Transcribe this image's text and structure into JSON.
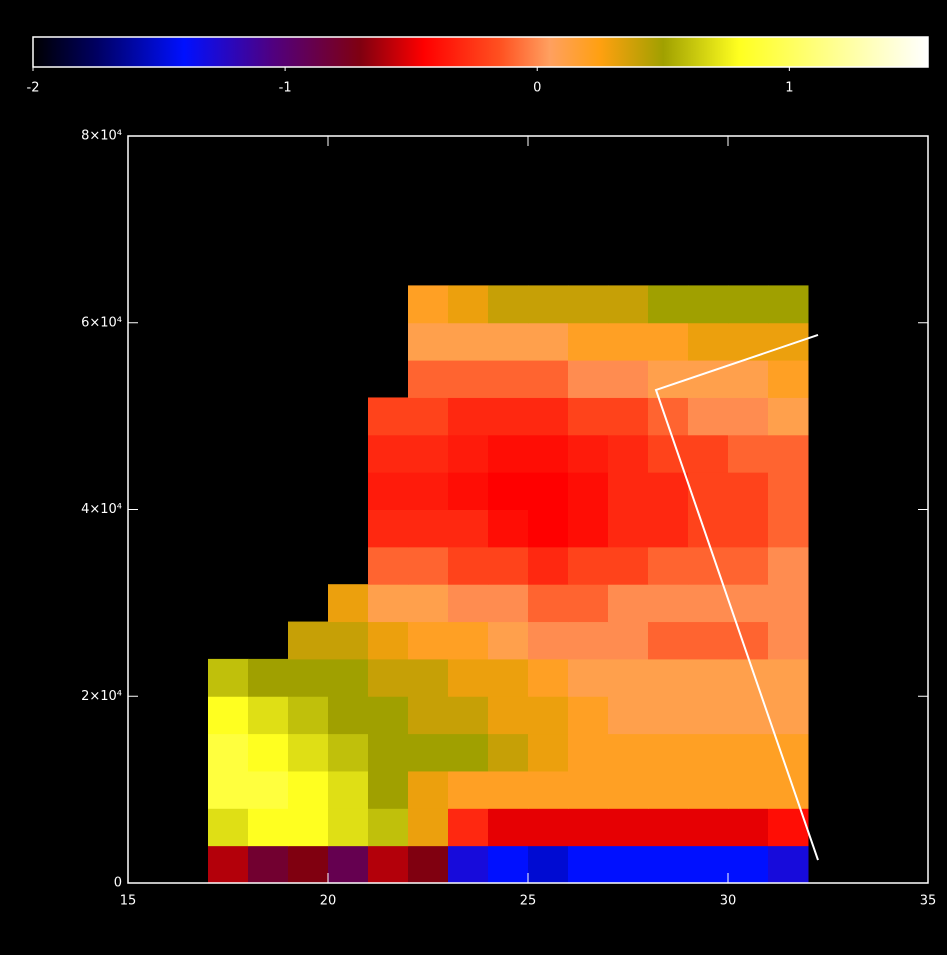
{
  "chart_data": {
    "type": "heatmap",
    "x_edges": [
      17,
      18,
      19,
      20,
      21,
      22,
      23,
      24,
      25,
      26,
      27,
      28,
      29,
      30,
      31,
      32
    ],
    "y_edges": [
      0,
      4000,
      8000,
      12000,
      16000,
      20000,
      24000,
      28000,
      32000,
      36000,
      40000,
      44000,
      48000,
      52000,
      56000,
      60000,
      64000
    ],
    "z": [
      [
        -0.6,
        -0.8,
        -0.7,
        -0.9,
        -0.6,
        -0.7,
        -1.3,
        -1.4,
        -1.5,
        -1.4,
        -1.4,
        -1.4,
        -1.4,
        -1.4,
        -1.3
      ],
      [
        0.7,
        0.8,
        0.8,
        0.7,
        0.6,
        0.3,
        -0.3,
        -0.5,
        -0.5,
        -0.5,
        -0.5,
        -0.5,
        -0.5,
        -0.5,
        -0.4
      ],
      [
        0.9,
        0.9,
        0.8,
        0.7,
        0.5,
        0.3,
        0.2,
        0.2,
        0.2,
        0.2,
        0.2,
        0.2,
        0.2,
        0.2,
        0.2
      ],
      [
        0.9,
        0.8,
        0.7,
        0.6,
        0.5,
        0.5,
        0.5,
        0.4,
        0.3,
        0.2,
        0.2,
        0.2,
        0.2,
        0.2,
        0.2
      ],
      [
        0.8,
        0.7,
        0.6,
        0.5,
        0.5,
        0.4,
        0.4,
        0.3,
        0.3,
        0.2,
        0.1,
        0.1,
        0.1,
        0.1,
        0.1
      ],
      [
        0.6,
        0.5,
        0.5,
        0.5,
        0.4,
        0.4,
        0.3,
        0.3,
        0.2,
        0.1,
        0.1,
        0.1,
        0.1,
        0.1,
        0.1
      ],
      [
        null,
        null,
        0.4,
        0.4,
        0.3,
        0.2,
        0.2,
        0.1,
        0.0,
        0.0,
        0.0,
        -0.1,
        -0.1,
        -0.1,
        0.0
      ],
      [
        null,
        null,
        null,
        0.3,
        0.1,
        0.1,
        0.0,
        0.0,
        -0.1,
        -0.1,
        0.0,
        0.0,
        0.0,
        0.0,
        0.0
      ],
      [
        null,
        null,
        null,
        null,
        -0.1,
        -0.1,
        -0.2,
        -0.2,
        -0.3,
        -0.2,
        -0.2,
        -0.1,
        -0.1,
        -0.1,
        0.0
      ],
      [
        null,
        null,
        null,
        null,
        -0.3,
        -0.3,
        -0.3,
        -0.4,
        -0.45,
        -0.4,
        -0.3,
        -0.3,
        -0.2,
        -0.2,
        -0.1
      ],
      [
        null,
        null,
        null,
        null,
        -0.35,
        -0.35,
        -0.4,
        -0.45,
        -0.45,
        -0.4,
        -0.3,
        -0.3,
        -0.2,
        -0.2,
        -0.1
      ],
      [
        null,
        null,
        null,
        null,
        -0.3,
        -0.3,
        -0.35,
        -0.4,
        -0.4,
        -0.35,
        -0.3,
        -0.2,
        -0.2,
        -0.1,
        -0.1
      ],
      [
        null,
        null,
        null,
        null,
        -0.2,
        -0.2,
        -0.3,
        -0.3,
        -0.3,
        -0.2,
        -0.2,
        -0.1,
        0.0,
        0.0,
        0.1
      ],
      [
        null,
        null,
        null,
        null,
        null,
        -0.1,
        -0.1,
        -0.1,
        -0.1,
        0.0,
        0.0,
        0.1,
        0.1,
        0.1,
        0.2
      ],
      [
        null,
        null,
        null,
        null,
        null,
        0.1,
        0.1,
        0.1,
        0.1,
        0.2,
        0.2,
        0.2,
        0.3,
        0.3,
        0.3
      ],
      [
        null,
        null,
        null,
        null,
        null,
        0.2,
        0.3,
        0.4,
        0.4,
        0.4,
        0.4,
        0.5,
        0.5,
        0.5,
        0.5
      ]
    ],
    "clim": [
      -2,
      1.55
    ],
    "cticks": [
      -2,
      -1,
      0,
      1
    ],
    "colormap": [
      {
        "value": -2,
        "color": "#000000"
      },
      {
        "value": -1.75,
        "color": "#000060"
      },
      {
        "value": -1.4,
        "color": "#0010ff"
      },
      {
        "value": -1.05,
        "color": "#500080"
      },
      {
        "value": -0.7,
        "color": "#800010"
      },
      {
        "value": -0.45,
        "color": "#ff0000"
      },
      {
        "value": -0.15,
        "color": "#ff5020"
      },
      {
        "value": 0.05,
        "color": "#ffa060"
      },
      {
        "value": 0.25,
        "color": "#ffa010"
      },
      {
        "value": 0.5,
        "color": "#a0a000"
      },
      {
        "value": 0.8,
        "color": "#ffff20"
      },
      {
        "value": 1.55,
        "color": "#ffffff"
      }
    ],
    "xlim": [
      15,
      35
    ],
    "xticks": [
      15,
      20,
      25,
      30,
      35
    ],
    "ylim": [
      0,
      80000
    ],
    "yticks": [
      0,
      {
        "value": 20000,
        "label": "2×10⁴"
      },
      {
        "value": 40000,
        "label": "4×10⁴"
      },
      {
        "value": 60000,
        "label": "6×10⁴"
      },
      {
        "value": 80000,
        "label": "8×10⁴"
      }
    ],
    "series": [
      {
        "color": "#ffffff",
        "x": [
          32.25,
          28.2,
          32.25
        ],
        "y": [
          58690,
          52800,
          2460
        ]
      }
    ]
  }
}
